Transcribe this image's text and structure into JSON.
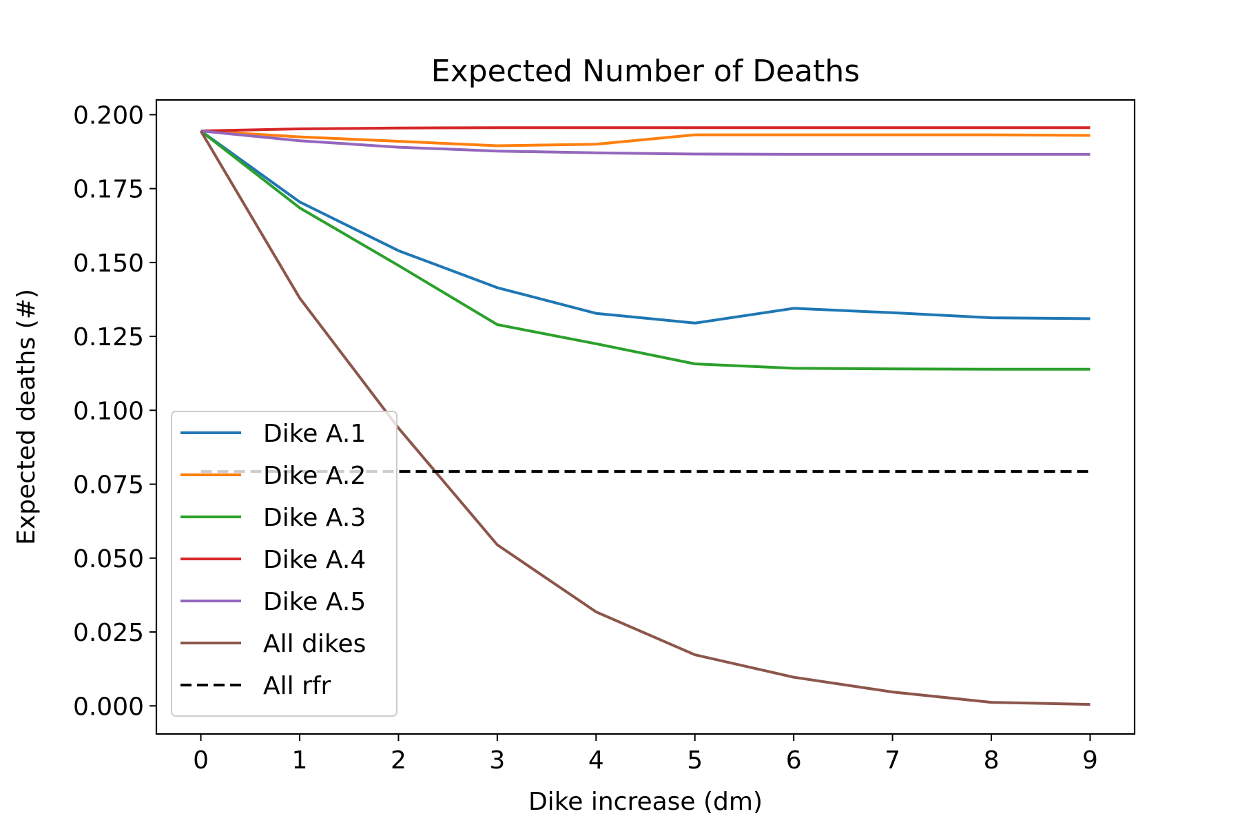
{
  "chart_data": {
    "type": "line",
    "title": "Expected Number of Deaths",
    "xlabel": "Dike increase (dm)",
    "ylabel": "Expected deaths (#)",
    "x": [
      0,
      1,
      2,
      3,
      4,
      5,
      6,
      7,
      8,
      9
    ],
    "xlim": [
      -0.45,
      9.45
    ],
    "ylim": [
      -0.0095,
      0.205
    ],
    "xticks": [
      0,
      1,
      2,
      3,
      4,
      5,
      6,
      7,
      8,
      9
    ],
    "yticks": [
      0.0,
      0.025,
      0.05,
      0.075,
      0.1,
      0.125,
      0.15,
      0.175,
      0.2
    ],
    "ytick_labels": [
      "0.000",
      "0.025",
      "0.050",
      "0.075",
      "0.100",
      "0.125",
      "0.150",
      "0.175",
      "0.200"
    ],
    "grid": false,
    "legend_position": "lower-left",
    "series": [
      {
        "name": "Dike A.1",
        "color": "#1f77b4",
        "dash": "solid",
        "values": [
          0.1945,
          0.1705,
          0.154,
          0.1415,
          0.1328,
          0.1295,
          0.1345,
          0.133,
          0.1313,
          0.131
        ]
      },
      {
        "name": "Dike A.2",
        "color": "#ff7f0e",
        "dash": "solid",
        "values": [
          0.1945,
          0.1925,
          0.191,
          0.1895,
          0.19,
          0.1932,
          0.1932,
          0.1932,
          0.1932,
          0.193
        ]
      },
      {
        "name": "Dike A.3",
        "color": "#2ca02c",
        "dash": "solid",
        "values": [
          0.1945,
          0.1685,
          0.149,
          0.129,
          0.1225,
          0.1157,
          0.1142,
          0.114,
          0.1139,
          0.1139
        ]
      },
      {
        "name": "Dike A.4",
        "color": "#d62728",
        "dash": "solid",
        "values": [
          0.1945,
          0.1952,
          0.1955,
          0.1956,
          0.1956,
          0.1956,
          0.1956,
          0.1956,
          0.1956,
          0.1956
        ]
      },
      {
        "name": "Dike A.5",
        "color": "#9467bd",
        "dash": "solid",
        "values": [
          0.1945,
          0.1912,
          0.189,
          0.1877,
          0.1871,
          0.1867,
          0.1866,
          0.1866,
          0.1866,
          0.1866
        ]
      },
      {
        "name": "All dikes",
        "color": "#8c564b",
        "dash": "solid",
        "values": [
          0.1945,
          0.138,
          0.094,
          0.0545,
          0.0318,
          0.0173,
          0.0097,
          0.0047,
          0.0012,
          0.0005
        ]
      },
      {
        "name": "All rfr",
        "color": "#000000",
        "dash": "dashed",
        "values": [
          0.0793,
          0.0793,
          0.0793,
          0.0793,
          0.0793,
          0.0793,
          0.0793,
          0.0793,
          0.0793,
          0.0793
        ]
      }
    ]
  }
}
